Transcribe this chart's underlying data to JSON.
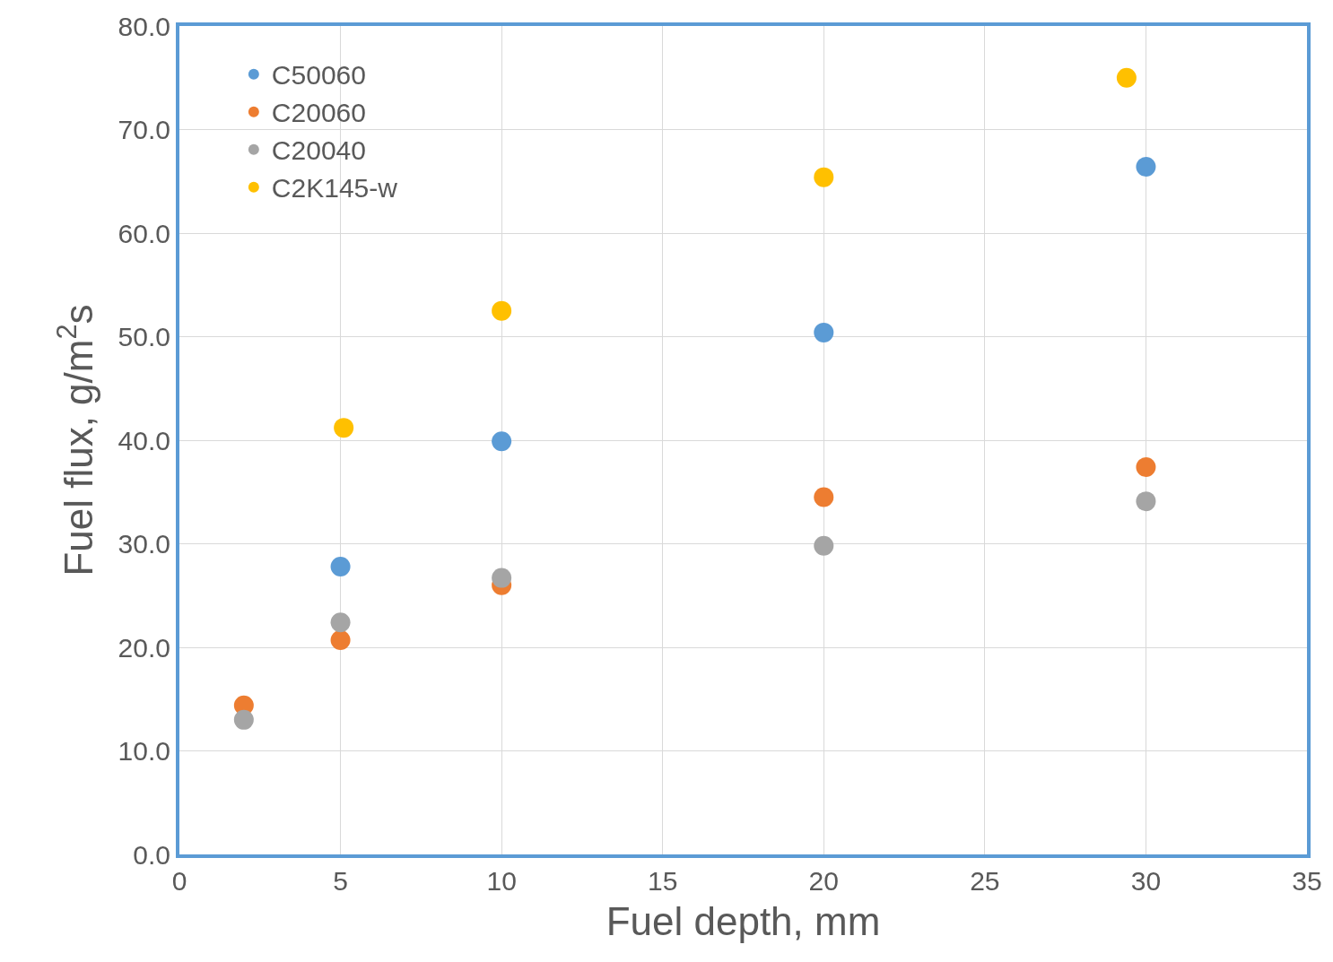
{
  "chart_data": {
    "type": "scatter",
    "xlabel": "Fuel depth, mm",
    "ylabel": "Fuel flux, g/m$^{2}$s",
    "xlim": [
      0,
      35
    ],
    "xticks": [
      0,
      5,
      10,
      15,
      20,
      25,
      30,
      35
    ],
    "ylim": [
      0,
      80
    ],
    "yticks": [
      {
        "value": 0,
        "label": "0.0"
      },
      {
        "value": 10,
        "label": "10.0"
      },
      {
        "value": 20,
        "label": "20.0"
      },
      {
        "value": 30,
        "label": "30.0"
      },
      {
        "value": 40,
        "label": "40.0"
      },
      {
        "value": 50,
        "label": "50.0"
      },
      {
        "value": 60,
        "label": "60.0"
      },
      {
        "value": 70,
        "label": "70.0"
      },
      {
        "value": 80,
        "label": "80.0"
      }
    ],
    "grid": true,
    "legend": "top left",
    "marker": "circle",
    "series": [
      {
        "name": "C50060",
        "color": "#5b9bd5",
        "x": [
          5,
          10,
          20,
          30
        ],
        "values": [
          27.8,
          39.9,
          50.4,
          66.4
        ]
      },
      {
        "name": "C20060",
        "color": "#ed7d31",
        "x": [
          2,
          5,
          10,
          20,
          30
        ],
        "values": [
          14.4,
          20.7,
          26.0,
          34.5,
          37.4
        ]
      },
      {
        "name": "C20040",
        "color": "#a5a5a5",
        "x": [
          2,
          5,
          10,
          20,
          30
        ],
        "values": [
          13.0,
          22.4,
          26.7,
          29.8,
          34.1
        ]
      },
      {
        "name": "C2K145-w",
        "color": "#ffc000",
        "x": [
          5.1,
          10,
          20,
          29.4
        ],
        "values": [
          41.2,
          52.5,
          65.4,
          75.0
        ]
      }
    ]
  }
}
